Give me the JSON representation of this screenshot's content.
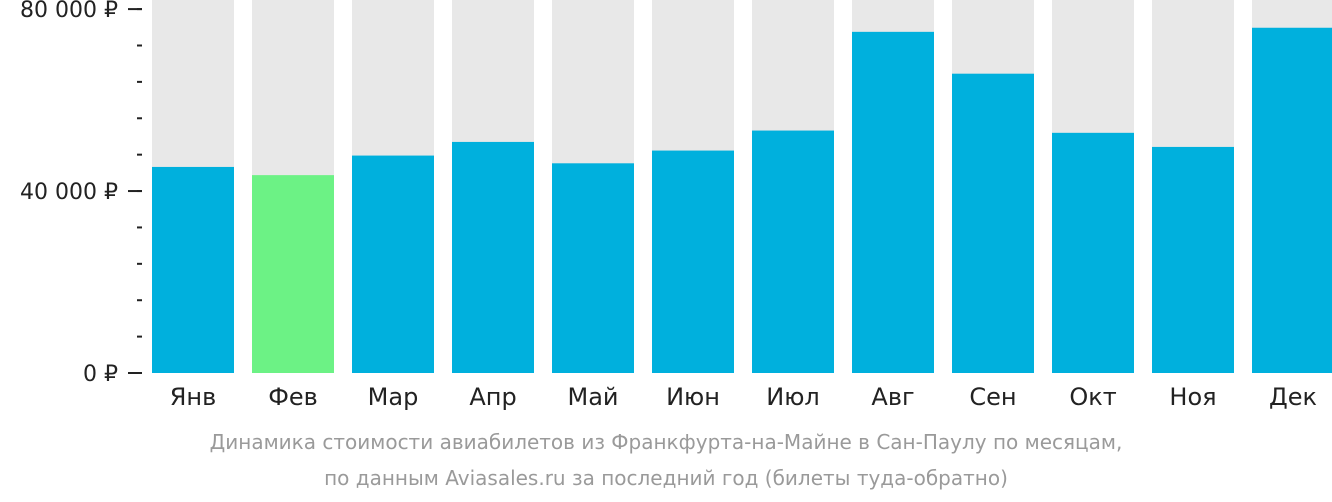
{
  "chart_data": {
    "type": "bar",
    "categories": [
      "Янв",
      "Фев",
      "Мар",
      "Апр",
      "Май",
      "Июн",
      "Июл",
      "Авг",
      "Сен",
      "Окт",
      "Ноя",
      "Дек"
    ],
    "values": [
      45300,
      43500,
      47800,
      50800,
      46100,
      48900,
      53300,
      75000,
      65800,
      52800,
      49700,
      75900
    ],
    "highlight_index": 1,
    "ylim": [
      0,
      82000
    ],
    "y_ticks": [
      {
        "value": 0,
        "label": "0 ₽"
      },
      {
        "value": 40000,
        "label": "40 000 ₽"
      },
      {
        "value": 80000,
        "label": "80 000 ₽"
      }
    ],
    "y_minor_step": 8000,
    "colors": {
      "bar": "#00b0dd",
      "highlight": "#6cf285",
      "track": "#e8e8e8",
      "axis": "#222222"
    }
  },
  "caption": {
    "line1": "Динамика стоимости авиабилетов из Франкфурта-на-Майне в Сан-Паулу по месяцам,",
    "line2": "по данным Aviasales.ru за последний год (билеты туда-обратно)"
  }
}
